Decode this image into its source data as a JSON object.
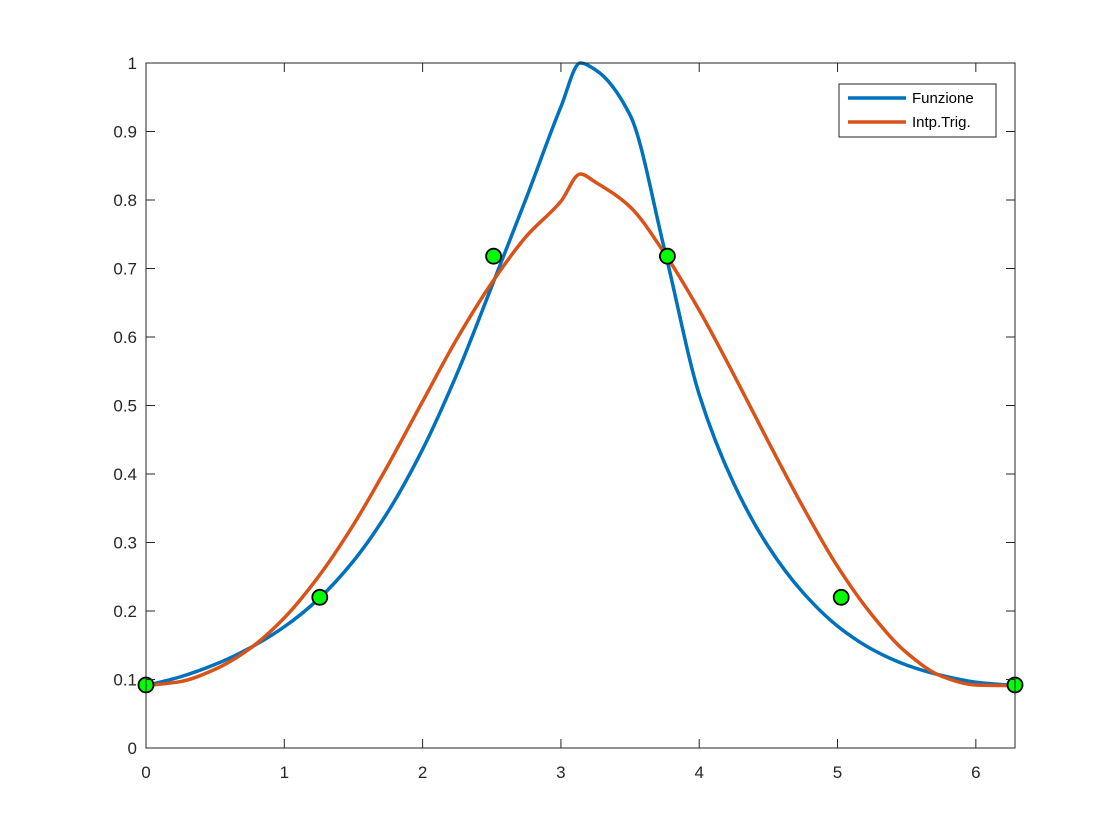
{
  "chart_data": {
    "type": "line",
    "xlim": [
      0,
      6.2832
    ],
    "ylim": [
      0,
      1
    ],
    "xticks": [
      0,
      1,
      2,
      3,
      4,
      5,
      6
    ],
    "yticks": [
      0,
      0.1,
      0.2,
      0.3,
      0.4,
      0.5,
      0.6,
      0.7,
      0.8,
      0.9,
      1
    ],
    "xtick_labels": [
      "0",
      "1",
      "2",
      "3",
      "4",
      "5",
      "6"
    ],
    "ytick_labels": [
      "0",
      "0.1",
      "0.2",
      "0.3",
      "0.4",
      "0.5",
      "0.6",
      "0.7",
      "0.8",
      "0.9",
      "1"
    ],
    "grid": false,
    "legend_position": "top-right",
    "series": [
      {
        "name": "Funzione",
        "color": "#0072BD",
        "x": [
          0,
          0.25,
          0.5,
          0.75,
          1.0,
          1.25,
          1.5,
          1.75,
          2.0,
          2.25,
          2.5,
          2.75,
          3.0,
          3.14,
          3.25,
          3.5,
          3.75,
          4.0,
          4.25,
          4.5,
          4.75,
          5.0,
          5.25,
          5.5,
          5.75,
          6.0,
          6.2832
        ],
        "y": [
          0.091,
          0.104,
          0.122,
          0.146,
          0.177,
          0.218,
          0.273,
          0.345,
          0.436,
          0.547,
          0.674,
          0.803,
          0.936,
          1.0,
          0.99,
          0.924,
          0.727,
          0.516,
          0.386,
          0.294,
          0.227,
          0.178,
          0.144,
          0.121,
          0.106,
          0.096,
          0.091
        ]
      },
      {
        "name": "Intp.Trig.",
        "color": "#D95319",
        "x": [
          0,
          0.25,
          0.5,
          0.75,
          1.0,
          1.25,
          1.5,
          1.75,
          2.0,
          2.25,
          2.5,
          2.75,
          3.0,
          3.14,
          3.25,
          3.5,
          3.75,
          4.0,
          4.25,
          4.5,
          4.75,
          5.0,
          5.25,
          5.5,
          5.75,
          6.0,
          6.2832
        ],
        "y": [
          0.091,
          0.097,
          0.115,
          0.145,
          0.19,
          0.251,
          0.326,
          0.413,
          0.506,
          0.598,
          0.679,
          0.747,
          0.798,
          0.838,
          0.826,
          0.79,
          0.722,
          0.639,
          0.545,
          0.447,
          0.352,
          0.265,
          0.194,
          0.139,
          0.105,
          0.092,
          0.091
        ]
      }
    ],
    "markers": {
      "color": "#00FF00",
      "edge_color": "#000000",
      "x": [
        0,
        1.2566,
        2.5133,
        3.7699,
        5.0265,
        6.2832
      ],
      "y": [
        0.092,
        0.22,
        0.718,
        0.718,
        0.22,
        0.092
      ]
    }
  }
}
